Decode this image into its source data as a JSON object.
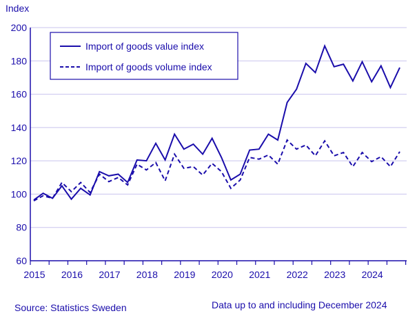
{
  "chart_data": {
    "type": "line",
    "ylabel": "Index",
    "ylim": [
      60,
      200
    ],
    "yticks": [
      60,
      80,
      100,
      120,
      140,
      160,
      180,
      200
    ],
    "xticklabels": [
      "2015",
      "2016",
      "2017",
      "2018",
      "2019",
      "2020",
      "2021",
      "2022",
      "2023",
      "2024"
    ],
    "grid": true,
    "legend_position": "top-left",
    "x": [
      "2015Q1",
      "2015Q2",
      "2015Q3",
      "2015Q4",
      "2016Q1",
      "2016Q2",
      "2016Q3",
      "2016Q4",
      "2017Q1",
      "2017Q2",
      "2017Q3",
      "2017Q4",
      "2018Q1",
      "2018Q2",
      "2018Q3",
      "2018Q4",
      "2019Q1",
      "2019Q2",
      "2019Q3",
      "2019Q4",
      "2020Q1",
      "2020Q2",
      "2020Q3",
      "2020Q4",
      "2021Q1",
      "2021Q2",
      "2021Q3",
      "2021Q4",
      "2022Q1",
      "2022Q2",
      "2022Q3",
      "2022Q4",
      "2023Q1",
      "2023Q2",
      "2023Q3",
      "2023Q4",
      "2024Q1",
      "2024Q2",
      "2024Q3",
      "2024Q4"
    ],
    "series": [
      {
        "name": "Import of goods value index",
        "style": "solid",
        "values": [
          96.5,
          100.5,
          97.5,
          105,
          97,
          103.5,
          99.5,
          113.5,
          111,
          112,
          107,
          120.5,
          120,
          130.5,
          120.5,
          136,
          127,
          130,
          124,
          133.5,
          122,
          108.5,
          112,
          126.5,
          127,
          136,
          132.5,
          155,
          163,
          178.5,
          173,
          189,
          176.5,
          178,
          168,
          179.5,
          167.5,
          177,
          164,
          176
        ]
      },
      {
        "name": "Import of goods volume index",
        "style": "dashed",
        "values": [
          96,
          99,
          97.5,
          107,
          101.5,
          107,
          101,
          112,
          107.5,
          110,
          105.5,
          118,
          114.5,
          119,
          108,
          124,
          115.5,
          116.5,
          111.5,
          118.5,
          113.5,
          103.5,
          108.5,
          122,
          121,
          123.5,
          118,
          132.5,
          127,
          129.5,
          123,
          132,
          123,
          125,
          116.5,
          125,
          119.5,
          122.5,
          116.5,
          125.5
        ]
      }
    ],
    "colors": {
      "line": "#1a0dab",
      "grid": "#c8c3ee"
    }
  },
  "source": "Source: Statistics Sweden",
  "footnote": "Data up to and including December 2024"
}
